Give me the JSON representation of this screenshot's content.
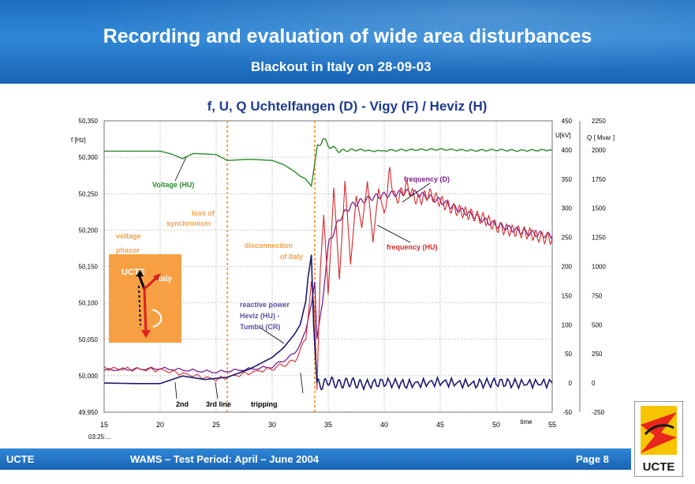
{
  "header": {
    "title": "Recording and evaluation of wide area disturbances",
    "subtitle": "Blackout in Italy on 28-09-03"
  },
  "footer": {
    "left": "UCTE",
    "center": "WAMS – Test Period: April – June 2004",
    "right": "Page 8"
  },
  "logo": {
    "text": "UCTE",
    "colors": [
      "#e8271c",
      "#f6c400",
      "#1a1a1a"
    ]
  },
  "phasor": {
    "ucte_label": "UCTE",
    "italy_label": "Italy",
    "bg_color": "#f7a043"
  },
  "chart_data": {
    "type": "line",
    "title": "f, U, Q Uchtelfangen (D) - Vigy (F) / Heviz (H)",
    "xlabel": "time",
    "x_start_label": "03:25:...",
    "xlim": [
      15,
      55
    ],
    "xticks": [
      15,
      20,
      25,
      30,
      35,
      40,
      45,
      50,
      55
    ],
    "y_left": {
      "label": "f [Hz]",
      "lim": [
        49.95,
        50.35
      ],
      "ticks": [
        "50,350",
        "50,300",
        "50,250",
        "50,200",
        "50,150",
        "50,100",
        "50,050",
        "50,000",
        "49,950"
      ]
    },
    "y_right1": {
      "label": "U[kV]",
      "lim": [
        -50,
        450
      ],
      "ticks": [
        "450",
        "400",
        "350",
        "300",
        "250",
        "200",
        "150",
        "100",
        "50",
        "0",
        "-50"
      ]
    },
    "y_right2": {
      "label": "Q [ Mvar ]",
      "lim": [
        -250,
        2250
      ],
      "ticks": [
        "2250",
        "2000",
        "1750",
        "1500",
        "1250",
        "1000",
        "750",
        "500",
        "250",
        "0",
        "-250"
      ]
    },
    "grid": true,
    "colors": {
      "voltage": "#2a8a2a",
      "freq_d": "#7a1f8c",
      "freq_hu": "#d42a2a",
      "reactive": "#1a1a6e",
      "marker": "#f7a043"
    },
    "series": [
      {
        "name": "Voltage (HU)",
        "axis": "u",
        "x": [
          15,
          16,
          17,
          18,
          19,
          20,
          21,
          22,
          22.5,
          23,
          24,
          25,
          25.5,
          26,
          27,
          28,
          29,
          30,
          31,
          32,
          32.5,
          33,
          33.5,
          34,
          34.5,
          35,
          36,
          37,
          38,
          39,
          40,
          42,
          45,
          48,
          50,
          52,
          55
        ],
        "y": [
          398,
          398,
          398,
          398,
          398,
          398,
          393,
          385,
          390,
          394,
          393,
          392,
          387,
          382,
          383,
          384,
          383,
          382,
          375,
          363,
          355,
          350,
          338,
          402,
          420,
          408,
          398,
          400,
          400,
          398,
          399,
          400,
          401,
          399,
          400,
          399,
          400
        ]
      },
      {
        "name": "frequency (D)",
        "axis": "f",
        "x": [
          15,
          20,
          25,
          30,
          32,
          33,
          33.5,
          33.8,
          34,
          34.5,
          35,
          36,
          37,
          38,
          39,
          40,
          41,
          42,
          43,
          44,
          45,
          46,
          47,
          48,
          49,
          50,
          51,
          52,
          53,
          54,
          55
        ],
        "y": [
          50.008,
          50.01,
          50.005,
          50.012,
          50.03,
          50.06,
          50.1,
          50.13,
          50.05,
          50.1,
          50.18,
          50.215,
          50.233,
          50.24,
          50.245,
          50.248,
          50.25,
          50.252,
          50.25,
          50.245,
          50.24,
          50.233,
          50.226,
          50.22,
          50.213,
          50.207,
          50.203,
          50.199,
          50.196,
          50.194,
          50.192
        ]
      },
      {
        "name": "frequency (HU)",
        "axis": "f",
        "x": [
          15,
          20,
          25,
          30,
          32,
          33,
          33.5,
          33.8,
          34,
          34.3,
          34.6,
          35,
          35.5,
          36,
          36.5,
          37,
          37.5,
          38,
          38.5,
          39,
          39.5,
          40,
          40.5,
          41,
          42,
          43,
          44,
          45,
          46,
          47,
          48,
          49,
          50,
          51,
          52,
          53,
          54,
          55
        ],
        "y": [
          50.01,
          50.008,
          49.995,
          50.01,
          50.02,
          50.05,
          50.13,
          50.08,
          49.98,
          50.15,
          50.22,
          50.11,
          50.26,
          50.13,
          50.27,
          50.15,
          50.25,
          50.2,
          50.27,
          50.18,
          50.26,
          50.22,
          50.28,
          50.24,
          50.26,
          50.24,
          50.25,
          50.24,
          50.23,
          50.225,
          50.22,
          50.215,
          50.205,
          50.2,
          50.198,
          50.195,
          50.19,
          50.188
        ]
      },
      {
        "name": "reactive power Heviz (HU) - Tumbri (CR)",
        "axis": "q",
        "x": [
          15,
          18,
          20,
          22,
          24,
          26,
          28,
          29,
          30,
          31,
          32,
          32.5,
          33,
          33.2,
          33.5,
          33.7,
          34,
          34.5,
          35,
          36,
          37,
          38,
          40,
          42,
          45,
          48,
          50,
          52,
          55
        ],
        "y": [
          0,
          -5,
          -5,
          60,
          30,
          50,
          120,
          170,
          220,
          300,
          420,
          500,
          700,
          900,
          1100,
          500,
          0,
          -20,
          20,
          -10,
          10,
          -15,
          5,
          -10,
          8,
          -8,
          5,
          -5,
          0
        ]
      }
    ],
    "annotations": [
      {
        "text": "Voltage   (HU)",
        "color": "#2a8a2a"
      },
      {
        "text": "frequency    (D)",
        "color": "#7a1f8c"
      },
      {
        "text": "frequency    (HU)",
        "color": "#d42a2a"
      },
      {
        "text": "loss  of",
        "color": "#f7a043"
      },
      {
        "text": "synchronism",
        "color": "#f7a043"
      },
      {
        "text": "disconnection",
        "color": "#f7a043"
      },
      {
        "text": "of Italy",
        "color": "#f7a043"
      },
      {
        "text": "voltage",
        "color": "#f7a043"
      },
      {
        "text": "phasor",
        "color": "#f7a043"
      },
      {
        "text": "reactive    power",
        "color": "#5a4ea0"
      },
      {
        "text": "Heviz    (HU) -",
        "color": "#5a4ea0"
      },
      {
        "text": "Tumbri    (CR)",
        "color": "#5a4ea0"
      },
      {
        "text": "2nd",
        "color": "#000000"
      },
      {
        "text": "3rd line",
        "color": "#000000"
      },
      {
        "text": "tripping",
        "color": "#000000"
      }
    ],
    "markers": [
      {
        "x": 26.0,
        "label": "loss of synchronism"
      },
      {
        "x": 33.8,
        "label": "disconnection of Italy"
      }
    ]
  }
}
